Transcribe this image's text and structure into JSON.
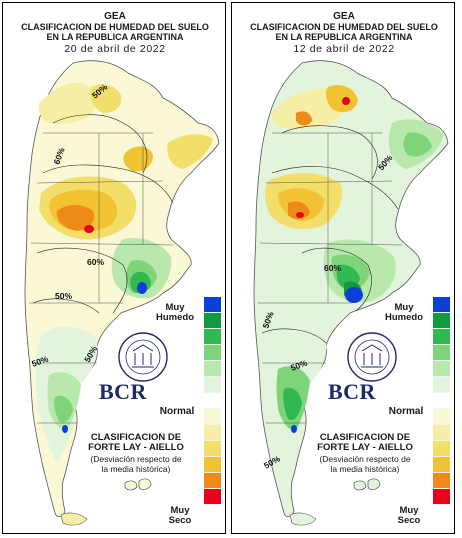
{
  "maps": [
    {
      "header": {
        "org": "GEA",
        "title_line1": "CLASIFICACION DE HUMEDAD DEL SUELO",
        "title_line2": "EN LA REPUBLICA ARGENTINA",
        "date": "20 de abril de 2022"
      },
      "contour_labels": [
        "50%",
        "60%",
        "60%",
        "50%",
        "50%",
        "50%"
      ]
    },
    {
      "header": {
        "org": "GEA",
        "title_line1": "CLASIFICACION DE HUMEDAD DEL SUELO",
        "title_line2": "EN LA REPUBLICA ARGENTINA",
        "date": "12 de abril de 2022"
      },
      "contour_labels": [
        "50%",
        "60%",
        "50%",
        "50%",
        "50%"
      ]
    }
  ],
  "legend": {
    "wet_label_line1": "Muy",
    "wet_label_line2": "Humedo",
    "normal_label": "Normal",
    "dry_label_line1": "Muy",
    "dry_label_line2": "Seco",
    "classes_wet_to_dry": [
      "#0b3fd8",
      "#0f9a3e",
      "#31b84f",
      "#7fd47a",
      "#b9e8ad",
      "#e2f5dc",
      "#ffffff",
      "#fbf8d6",
      "#f5eea4",
      "#f3de6a",
      "#f1c232",
      "#ee8a17",
      "#e6001a"
    ]
  },
  "classification": {
    "title_line1": "CLASIFICACION DE",
    "title_line2": "FORTE LAY - AIELLO",
    "desc_line1": "(Desviación respecto de",
    "desc_line2": "la media histórica)"
  },
  "logo": {
    "seal_text": "BOLSA DE COMERCIO DE ROSARIO",
    "acronym": "BCR"
  }
}
